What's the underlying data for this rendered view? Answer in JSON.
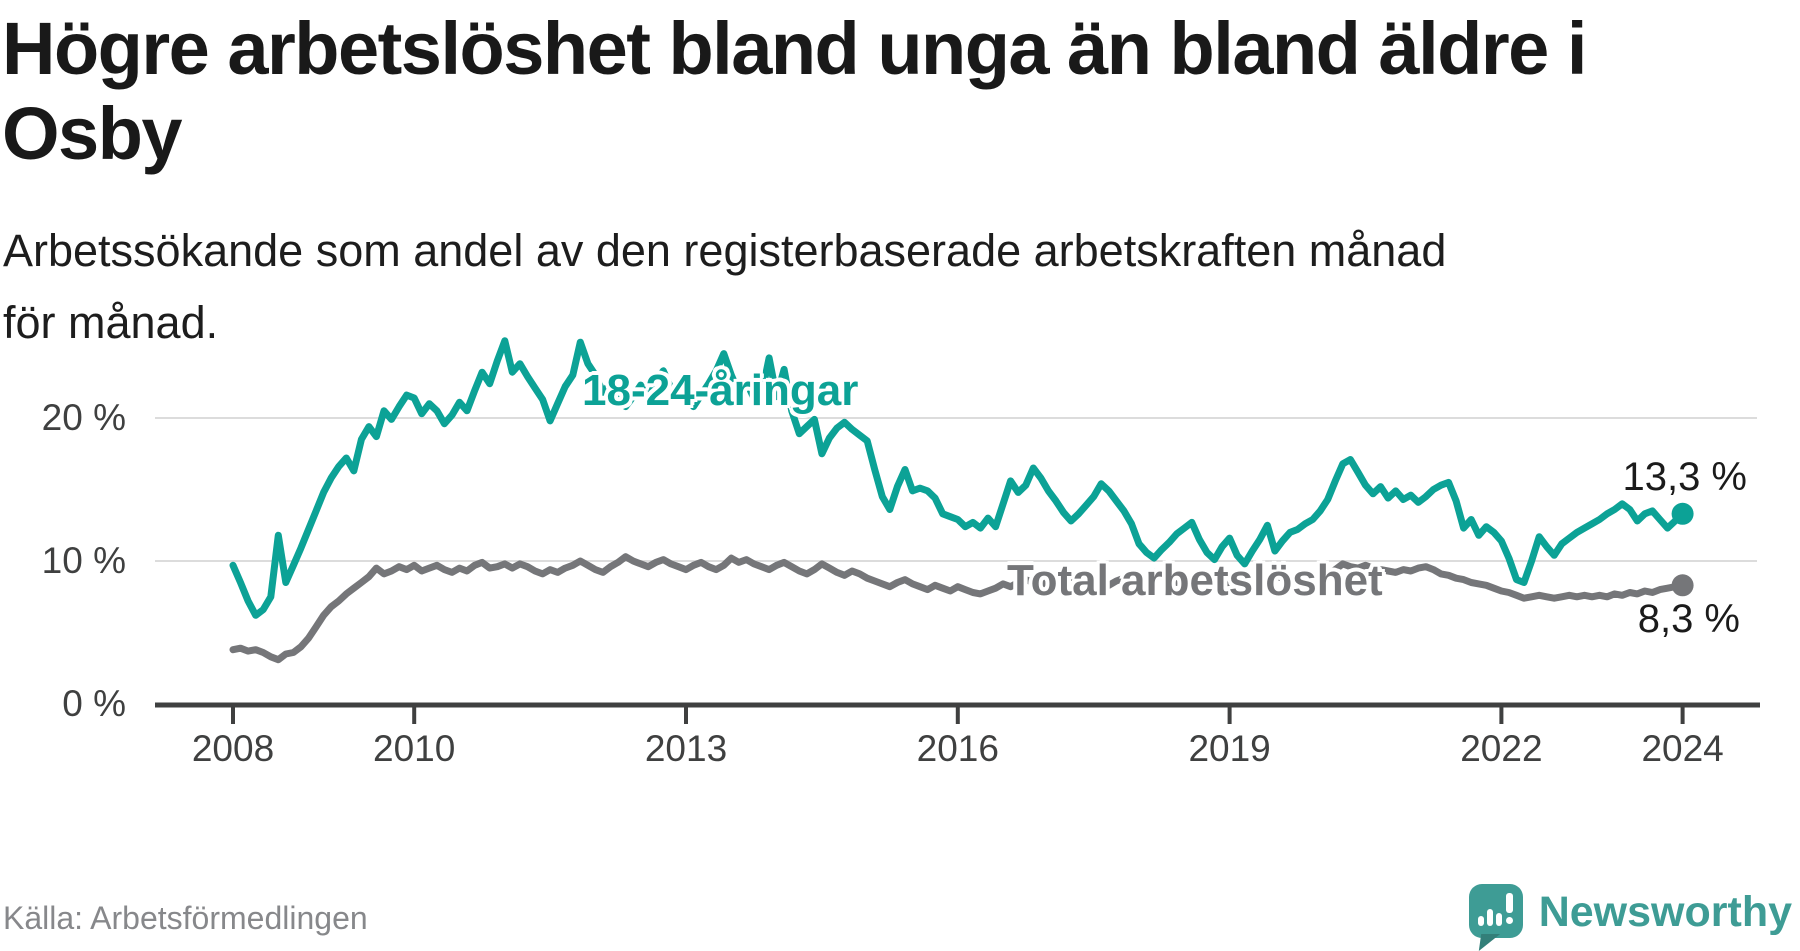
{
  "header": {
    "title": "Högre arbetslöshet bland unga än bland äldre i Osby",
    "subtitle": "Arbetssökande som andel av den registerbaserade arbetskraften månad för månad."
  },
  "source": {
    "label": "Källa: Arbetsförmedlingen"
  },
  "branding": {
    "name": "Newsworthy",
    "color": "#3e9c95",
    "icon": "speech-bubble-chart-icon"
  },
  "chart_data": {
    "type": "line",
    "title": "Högre arbetslöshet bland unga än bland äldre i Osby",
    "subtitle": "Arbetssökande som andel av den registerbaserade arbetskraften månad för månad.",
    "xlabel": "",
    "ylabel": "",
    "grid": "horizontal",
    "legend_position": "inline-labels",
    "x_range": [
      2008.0,
      2024.0
    ],
    "x_unit": "monthly",
    "ylim": [
      0,
      27
    ],
    "y_ticks": [
      {
        "value": 0,
        "label": "0 %"
      },
      {
        "value": 10,
        "label": "10 %"
      },
      {
        "value": 20,
        "label": "20 %"
      }
    ],
    "x_ticks": [
      {
        "year": 2008,
        "label": "2008"
      },
      {
        "year": 2010,
        "label": "2010"
      },
      {
        "year": 2013,
        "label": "2013"
      },
      {
        "year": 2016,
        "label": "2016"
      },
      {
        "year": 2019,
        "label": "2019"
      },
      {
        "year": 2022,
        "label": "2022"
      },
      {
        "year": 2024,
        "label": "2024"
      }
    ],
    "series": [
      {
        "name": "Total arbetslöshet",
        "color": "#757679",
        "end_label": "8,3 %",
        "end_value": 8.3,
        "start_year": 2008,
        "values": [
          3.8,
          3.9,
          3.7,
          3.8,
          3.6,
          3.3,
          3.1,
          3.5,
          3.6,
          4.0,
          4.6,
          5.4,
          6.2,
          6.8,
          7.2,
          7.7,
          8.1,
          8.5,
          8.9,
          9.5,
          9.1,
          9.3,
          9.6,
          9.4,
          9.7,
          9.3,
          9.5,
          9.7,
          9.4,
          9.2,
          9.5,
          9.3,
          9.7,
          9.9,
          9.5,
          9.6,
          9.8,
          9.5,
          9.8,
          9.6,
          9.3,
          9.1,
          9.4,
          9.2,
          9.5,
          9.7,
          10.0,
          9.7,
          9.4,
          9.2,
          9.6,
          9.9,
          10.3,
          10.0,
          9.8,
          9.6,
          9.9,
          10.1,
          9.8,
          9.6,
          9.4,
          9.7,
          9.9,
          9.6,
          9.4,
          9.7,
          10.2,
          9.9,
          10.1,
          9.8,
          9.6,
          9.4,
          9.7,
          9.9,
          9.6,
          9.3,
          9.1,
          9.4,
          9.8,
          9.5,
          9.2,
          9.0,
          9.3,
          9.1,
          8.8,
          8.6,
          8.4,
          8.2,
          8.5,
          8.7,
          8.4,
          8.2,
          8.0,
          8.3,
          8.1,
          7.9,
          8.2,
          8.0,
          7.8,
          7.7,
          7.9,
          8.1,
          8.4,
          8.2,
          8.5,
          8.7,
          8.5,
          8.3,
          8.6,
          8.4,
          8.7,
          8.9,
          8.6,
          8.4,
          8.7,
          8.5,
          8.3,
          8.6,
          8.8,
          8.5,
          8.7,
          8.9,
          9.2,
          8.9,
          8.7,
          8.5,
          8.8,
          8.6,
          8.4,
          8.7,
          8.9,
          8.6,
          8.4,
          8.7,
          9.0,
          8.8,
          8.5,
          8.7,
          9.0,
          8.8,
          8.6,
          8.8,
          9.1,
          8.9,
          8.8,
          9.0,
          9.4,
          9.8,
          9.6,
          9.5,
          9.7,
          9.5,
          9.4,
          9.3,
          9.2,
          9.4,
          9.3,
          9.5,
          9.6,
          9.4,
          9.1,
          9.0,
          8.8,
          8.7,
          8.5,
          8.4,
          8.3,
          8.1,
          7.9,
          7.8,
          7.6,
          7.4,
          7.5,
          7.6,
          7.5,
          7.4,
          7.5,
          7.6,
          7.5,
          7.6,
          7.5,
          7.6,
          7.5,
          7.7,
          7.6,
          7.8,
          7.7,
          7.9,
          7.8,
          8.0,
          8.1,
          8.2,
          8.3
        ]
      },
      {
        "name": "18-24-åringar",
        "color": "#0ca296",
        "end_label": "13,3 %",
        "end_value": 13.3,
        "start_year": 2008,
        "values": [
          9.7,
          8.5,
          7.2,
          6.2,
          6.6,
          7.5,
          11.8,
          8.5,
          9.7,
          10.9,
          12.2,
          13.5,
          14.8,
          15.8,
          16.6,
          17.2,
          16.3,
          18.5,
          19.4,
          18.7,
          20.5,
          19.9,
          20.8,
          21.6,
          21.4,
          20.3,
          21.0,
          20.5,
          19.6,
          20.2,
          21.1,
          20.5,
          21.9,
          23.2,
          22.4,
          24.0,
          25.4,
          23.2,
          23.8,
          22.9,
          22.1,
          21.3,
          19.8,
          21.0,
          22.2,
          23.0,
          25.3,
          23.8,
          23.0,
          21.8,
          22.4,
          21.6,
          20.8,
          21.5,
          22.3,
          21.2,
          22.6,
          23.3,
          22.1,
          21.4,
          21.5,
          20.8,
          21.6,
          22.4,
          23.3,
          24.5,
          23.0,
          21.8,
          22.5,
          21.4,
          21.6,
          24.2,
          21.5,
          23.4,
          20.5,
          18.9,
          19.4,
          19.9,
          17.5,
          18.6,
          19.3,
          19.7,
          19.2,
          18.8,
          18.4,
          16.4,
          14.5,
          13.6,
          15.2,
          16.4,
          14.9,
          15.1,
          14.9,
          14.4,
          13.3,
          13.1,
          12.9,
          12.4,
          12.7,
          12.3,
          13.0,
          12.4,
          14.0,
          15.6,
          14.8,
          15.3,
          16.5,
          15.8,
          14.9,
          14.2,
          13.4,
          12.8,
          13.3,
          13.9,
          14.5,
          15.4,
          14.9,
          14.2,
          13.5,
          12.6,
          11.2,
          10.6,
          10.2,
          10.8,
          11.3,
          11.9,
          12.3,
          12.7,
          11.5,
          10.6,
          10.1,
          11.0,
          11.6,
          10.4,
          9.8,
          10.7,
          11.5,
          12.5,
          10.7,
          11.4,
          12.0,
          12.2,
          12.6,
          12.9,
          13.5,
          14.3,
          15.6,
          16.8,
          17.1,
          16.2,
          15.3,
          14.7,
          15.2,
          14.4,
          14.9,
          14.3,
          14.6,
          14.1,
          14.5,
          15.0,
          15.3,
          15.5,
          14.2,
          12.3,
          12.9,
          11.8,
          12.4,
          12.0,
          11.4,
          10.2,
          8.7,
          8.5,
          10.0,
          11.7,
          11.0,
          10.4,
          11.2,
          11.6,
          12.0,
          12.3,
          12.6,
          12.9,
          13.3,
          13.6,
          14.0,
          13.6,
          12.8,
          13.3,
          13.5,
          12.9,
          12.3,
          12.8,
          13.3
        ]
      }
    ]
  }
}
